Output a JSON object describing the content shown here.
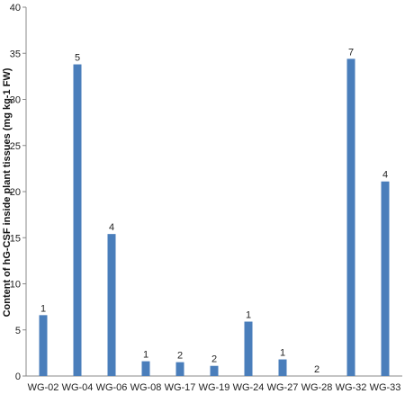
{
  "chart_data": {
    "type": "bar",
    "title": "",
    "xlabel": "",
    "ylabel": "Content of hG-CSF inside plant tissues (mg kg-1 FW)",
    "ylim": [
      0,
      40
    ],
    "yticks": [
      0,
      5,
      10,
      15,
      20,
      25,
      30,
      35,
      40
    ],
    "grid": false,
    "legend": "none",
    "bar_color": "#4a7ebb",
    "categories": [
      "WG-02",
      "WG-04",
      "WG-06",
      "WG-08",
      "WG-17",
      "WG-19",
      "WG-24",
      "WG-27",
      "WG-28",
      "WG-32",
      "WG-33"
    ],
    "values": [
      6.6,
      33.8,
      15.4,
      1.6,
      1.5,
      1.1,
      5.9,
      1.8,
      0,
      34.4,
      21.1
    ],
    "data_labels": [
      "1",
      "5",
      "4",
      "1",
      "2",
      "2",
      "1",
      "1",
      "2",
      "7",
      "4"
    ]
  }
}
